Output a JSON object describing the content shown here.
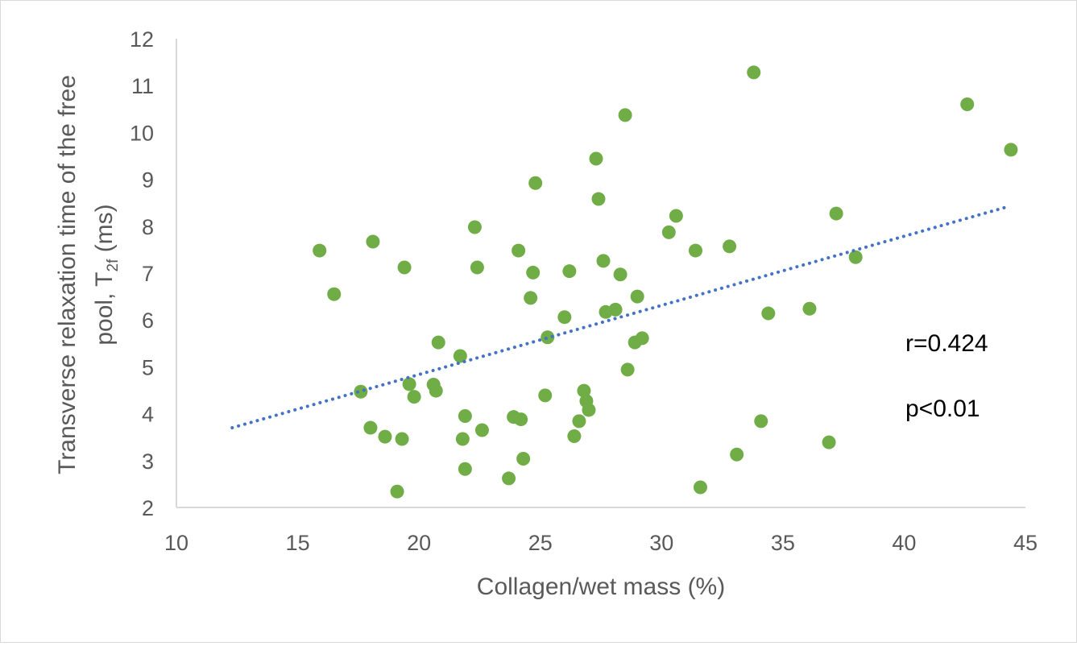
{
  "chart_data": {
    "type": "scatter",
    "title": "",
    "xlabel": "Collagen/wet mass (%)",
    "ylabel": {
      "line1": "Transverse relaxation time of the free",
      "line2_pre": "pool, T",
      "line2_sub": "2f",
      "line2_post": " (ms)"
    },
    "xlim": [
      10,
      45
    ],
    "ylim": [
      2,
      12
    ],
    "xticks": [
      10,
      15,
      20,
      25,
      30,
      35,
      40,
      45
    ],
    "yticks": [
      2,
      3,
      4,
      5,
      6,
      7,
      8,
      9,
      10,
      11,
      12
    ],
    "grid": false,
    "colors": {
      "points": "#70ad47",
      "trendline": "#4472c4",
      "axis": "#d9d9d9",
      "text": "#595959"
    },
    "series": [
      {
        "name": "samples",
        "points": [
          [
            15.9,
            7.48
          ],
          [
            16.5,
            6.55
          ],
          [
            17.6,
            4.47
          ],
          [
            18.0,
            3.7
          ],
          [
            18.1,
            7.67
          ],
          [
            18.6,
            3.51
          ],
          [
            19.1,
            2.34
          ],
          [
            19.3,
            3.46
          ],
          [
            19.4,
            7.12
          ],
          [
            19.6,
            4.63
          ],
          [
            19.8,
            4.36
          ],
          [
            20.6,
            4.62
          ],
          [
            20.7,
            4.49
          ],
          [
            20.8,
            5.52
          ],
          [
            21.7,
            5.23
          ],
          [
            21.8,
            3.46
          ],
          [
            21.9,
            3.95
          ],
          [
            21.9,
            2.82
          ],
          [
            22.3,
            7.98
          ],
          [
            22.4,
            7.12
          ],
          [
            22.6,
            3.65
          ],
          [
            23.7,
            2.62
          ],
          [
            23.9,
            3.93
          ],
          [
            24.1,
            7.48
          ],
          [
            24.2,
            3.88
          ],
          [
            24.3,
            3.04
          ],
          [
            24.6,
            6.47
          ],
          [
            24.7,
            7.01
          ],
          [
            24.8,
            8.92
          ],
          [
            25.2,
            4.39
          ],
          [
            25.3,
            5.63
          ],
          [
            26.0,
            6.06
          ],
          [
            26.2,
            7.04
          ],
          [
            26.4,
            3.52
          ],
          [
            26.6,
            3.84
          ],
          [
            26.8,
            4.49
          ],
          [
            26.9,
            4.27
          ],
          [
            27.0,
            4.08
          ],
          [
            27.3,
            9.44
          ],
          [
            27.4,
            8.58
          ],
          [
            27.6,
            7.26
          ],
          [
            27.7,
            6.17
          ],
          [
            28.1,
            6.22
          ],
          [
            28.3,
            6.97
          ],
          [
            28.5,
            10.37
          ],
          [
            28.6,
            4.94
          ],
          [
            28.9,
            5.52
          ],
          [
            29.0,
            6.5
          ],
          [
            29.2,
            5.61
          ],
          [
            30.3,
            7.87
          ],
          [
            30.6,
            8.22
          ],
          [
            31.4,
            7.48
          ],
          [
            31.6,
            2.43
          ],
          [
            32.8,
            7.57
          ],
          [
            33.1,
            3.13
          ],
          [
            33.8,
            11.28
          ],
          [
            34.1,
            3.84
          ],
          [
            34.4,
            6.14
          ],
          [
            36.1,
            6.24
          ],
          [
            36.9,
            3.39
          ],
          [
            37.2,
            8.27
          ],
          [
            38.0,
            7.34
          ],
          [
            42.6,
            10.6
          ],
          [
            44.4,
            9.63
          ]
        ]
      }
    ],
    "trendline": {
      "style": "dotted",
      "x": [
        12.3,
        44.3
      ],
      "y": [
        3.7,
        8.42
      ]
    },
    "annotations": {
      "r": "r=0.424",
      "p": "p<0.01"
    }
  }
}
